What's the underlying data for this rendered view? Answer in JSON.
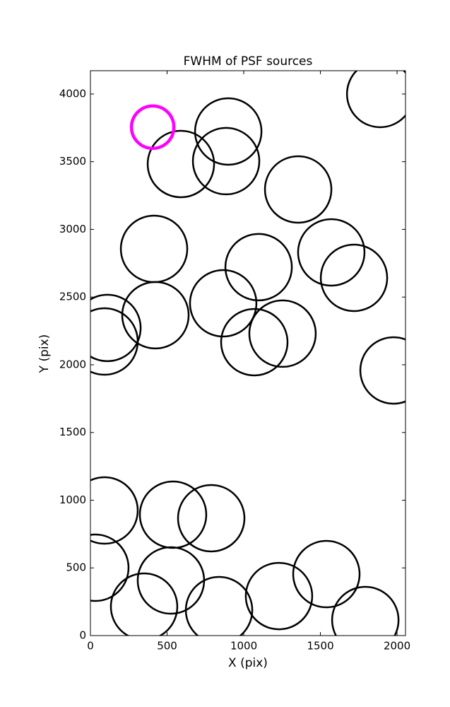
{
  "chart_data": {
    "type": "scatter",
    "title": "FWHM of PSF sources",
    "x_label": "X (pix)",
    "y_label": "Y (pix)",
    "xlim": [
      0,
      2055
    ],
    "ylim": [
      0,
      4172
    ],
    "xticks": [
      0,
      500,
      1000,
      1500,
      2000
    ],
    "yticks": [
      0,
      500,
      1000,
      1500,
      2000,
      2500,
      3000,
      3500,
      4000
    ],
    "grid": false,
    "series": [
      {
        "color": "#000000",
        "x": [
          1890,
          899,
          590,
          885,
          1355,
          415,
          1571,
          1097,
          1719,
          866,
          111,
          424,
          92,
          1069,
          1253,
          1977,
          92,
          539,
          788,
          32,
          525,
          1539,
          350,
          839,
          1230,
          1793
        ],
        "values": [
          4000,
          3723,
          3483,
          3504,
          3295,
          2856,
          2830,
          2721,
          2642,
          2454,
          2272,
          2366,
          2172,
          2167,
          2230,
          1958,
          924,
          893,
          867,
          501,
          407,
          454,
          214,
          188,
          292,
          115
        ]
      },
      {
        "color": "#ff00ff",
        "x": [
          406
        ],
        "values": [
          3755
        ]
      }
    ]
  }
}
